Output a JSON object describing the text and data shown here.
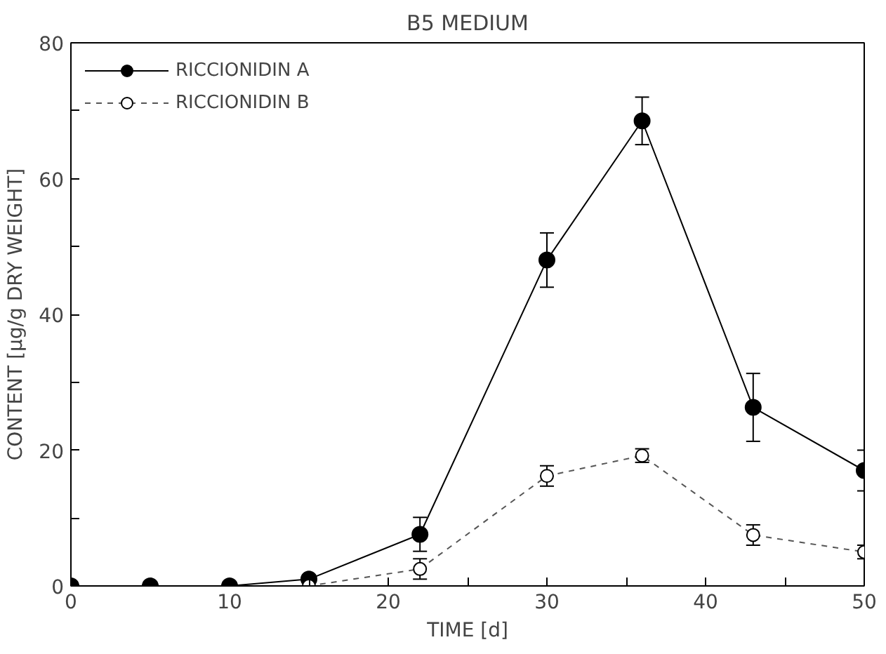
{
  "chart_data": {
    "type": "line",
    "title": "B5 MEDIUM",
    "xlabel": "TIME [d]",
    "ylabel": "CONTENT [µg/g DRY WEIGHT]",
    "xlim": [
      0,
      50
    ],
    "xticks": [
      0,
      {
        "value": 5,
        "label": null
      },
      10,
      {
        "value": 15,
        "label": null
      },
      20,
      {
        "value": 25,
        "label": null
      },
      30,
      {
        "value": 35,
        "label": null
      },
      40,
      {
        "value": 45,
        "label": null
      },
      50
    ],
    "ylim": [
      0,
      80
    ],
    "yticks": [
      0,
      {
        "value": 10,
        "label": null
      },
      20,
      {
        "value": 30,
        "label": null
      },
      40,
      {
        "value": 50,
        "label": null
      },
      60,
      {
        "value": 70,
        "label": null
      },
      80
    ],
    "grid": false,
    "legend": "top left",
    "marker": "circle",
    "series": [
      {
        "name": "RICCIONIDIN A",
        "color": "#000000",
        "line_style": "solid",
        "x": [
          0,
          5,
          10,
          15,
          22,
          30,
          36,
          43,
          50
        ],
        "values": [
          0,
          0,
          0,
          1,
          7.6,
          48,
          68.5,
          26.3,
          17
        ],
        "errors": [
          null,
          null,
          null,
          null,
          2.5,
          4,
          3.5,
          5,
          3
        ]
      },
      {
        "name": "RICCIONIDIN B",
        "color": "#555555",
        "line_style": "dashed",
        "x": [
          15,
          22,
          30,
          36,
          43,
          50
        ],
        "values": [
          0,
          2.5,
          16.2,
          19.2,
          7.5,
          5
        ],
        "errors": [
          null,
          1.5,
          1.5,
          1,
          1.5,
          1
        ]
      }
    ]
  }
}
